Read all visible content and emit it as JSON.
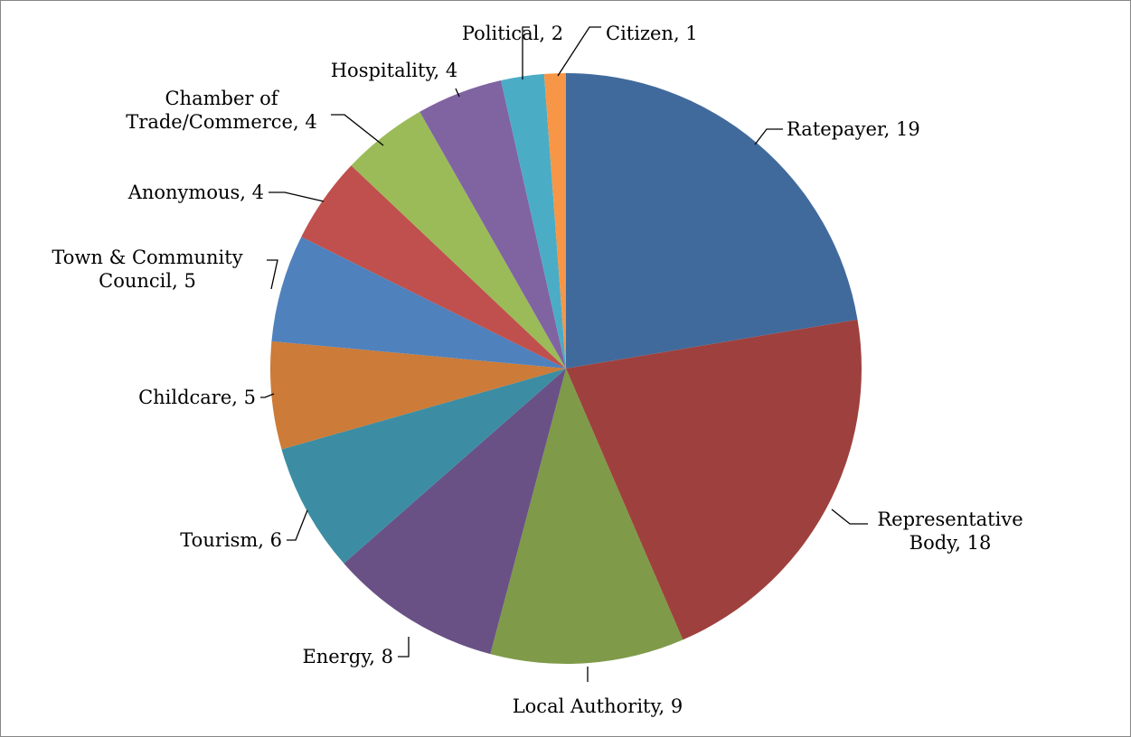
{
  "chart_data": {
    "type": "pie",
    "title": "",
    "start_angle_deg": 0,
    "direction": "clockwise",
    "legend": "none",
    "slices": [
      {
        "label": "Ratepayer",
        "value": 19,
        "color": "#416A9C"
      },
      {
        "label": "Representative Body",
        "value": 18,
        "color": "#9E413E"
      },
      {
        "label": "Local Authority",
        "value": 9,
        "color": "#7F9A48"
      },
      {
        "label": "Energy",
        "value": 8,
        "color": "#695185"
      },
      {
        "label": "Tourism",
        "value": 6,
        "color": "#3C8DA3"
      },
      {
        "label": "Childcare",
        "value": 5,
        "color": "#CC7B38"
      },
      {
        "label": "Town & Community Council",
        "value": 5,
        "color": "#4F81BD"
      },
      {
        "label": "Anonymous",
        "value": 4,
        "color": "#C0504D"
      },
      {
        "label": "Chamber of Trade/Commerce",
        "value": 4,
        "color": "#9BBB59"
      },
      {
        "label": "Hospitality",
        "value": 4,
        "color": "#8064A2"
      },
      {
        "label": "Political",
        "value": 2,
        "color": "#4BACC6"
      },
      {
        "label": "Citizen",
        "value": 1,
        "color": "#F79646"
      }
    ],
    "data_labels": [
      {
        "lines": [
          "Ratepayer, 19"
        ]
      },
      {
        "lines": [
          "Representative",
          "Body, 18"
        ]
      },
      {
        "lines": [
          "Local Authority, 9"
        ]
      },
      {
        "lines": [
          "Energy, 8"
        ]
      },
      {
        "lines": [
          "Tourism, 6"
        ]
      },
      {
        "lines": [
          "Childcare, 5"
        ]
      },
      {
        "lines": [
          "Town & Community",
          "Council, 5"
        ]
      },
      {
        "lines": [
          "Anonymous, 4"
        ]
      },
      {
        "lines": [
          "Chamber of",
          "Trade/Commerce, 4"
        ]
      },
      {
        "lines": [
          "Hospitality, 4"
        ]
      },
      {
        "lines": [
          "Political, 2"
        ]
      },
      {
        "lines": [
          "Citizen, 1"
        ]
      }
    ]
  }
}
